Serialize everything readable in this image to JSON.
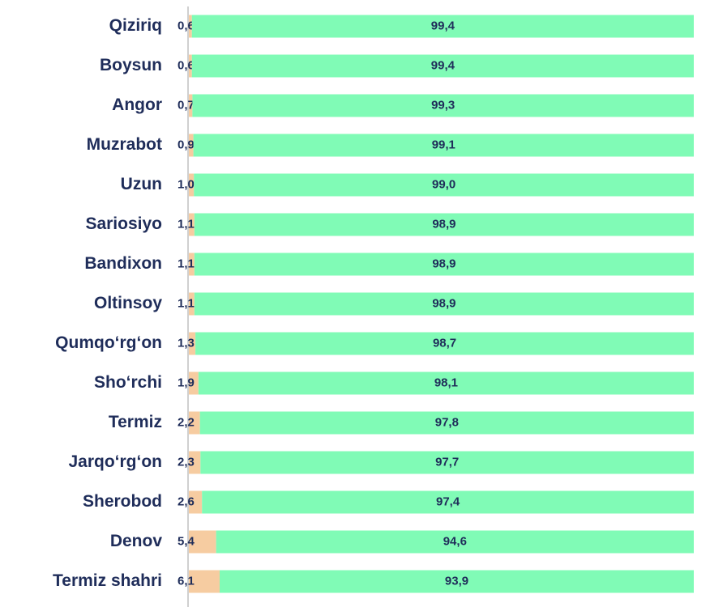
{
  "chart_data": {
    "type": "stacked-bar-horizontal",
    "categories": [
      "Qiziriq",
      "Boysun",
      "Angor",
      "Muzrabot",
      "Uzun",
      "Sariosiyo",
      "Bandixon",
      "Oltinsoy",
      "Qumqo‘rg‘on",
      "Sho‘rchi",
      "Termiz",
      "Jarqo‘rg‘on",
      "Sherobod",
      "Denov",
      "Termiz shahri"
    ],
    "xlim": [
      0,
      100
    ],
    "series": [
      {
        "color": "#f6cca1",
        "values": [
          0.6,
          0.6,
          0.7,
          0.9,
          1.0,
          1.1,
          1.1,
          1.1,
          1.3,
          1.9,
          2.2,
          2.3,
          2.6,
          5.4,
          6.1
        ],
        "value_labels": [
          "0,6",
          "0,6",
          "0,7",
          "0,9",
          "1,0",
          "1,1",
          "1,1",
          "1,1",
          "1,3",
          "1,9",
          "2,2",
          "2,3",
          "2,6",
          "5,4",
          "6,1"
        ]
      },
      {
        "color": "#80fbb6",
        "values": [
          99.4,
          99.4,
          99.3,
          99.1,
          99.0,
          98.9,
          98.9,
          98.9,
          98.7,
          98.1,
          97.8,
          97.7,
          97.4,
          94.6,
          93.9
        ],
        "value_labels": [
          "99,4",
          "99,4",
          "99,3",
          "99,1",
          "99,0",
          "98,9",
          "98,9",
          "98,9",
          "98,7",
          "98,1",
          "97,8",
          "97,7",
          "97,4",
          "94,6",
          "93,9"
        ]
      }
    ]
  }
}
